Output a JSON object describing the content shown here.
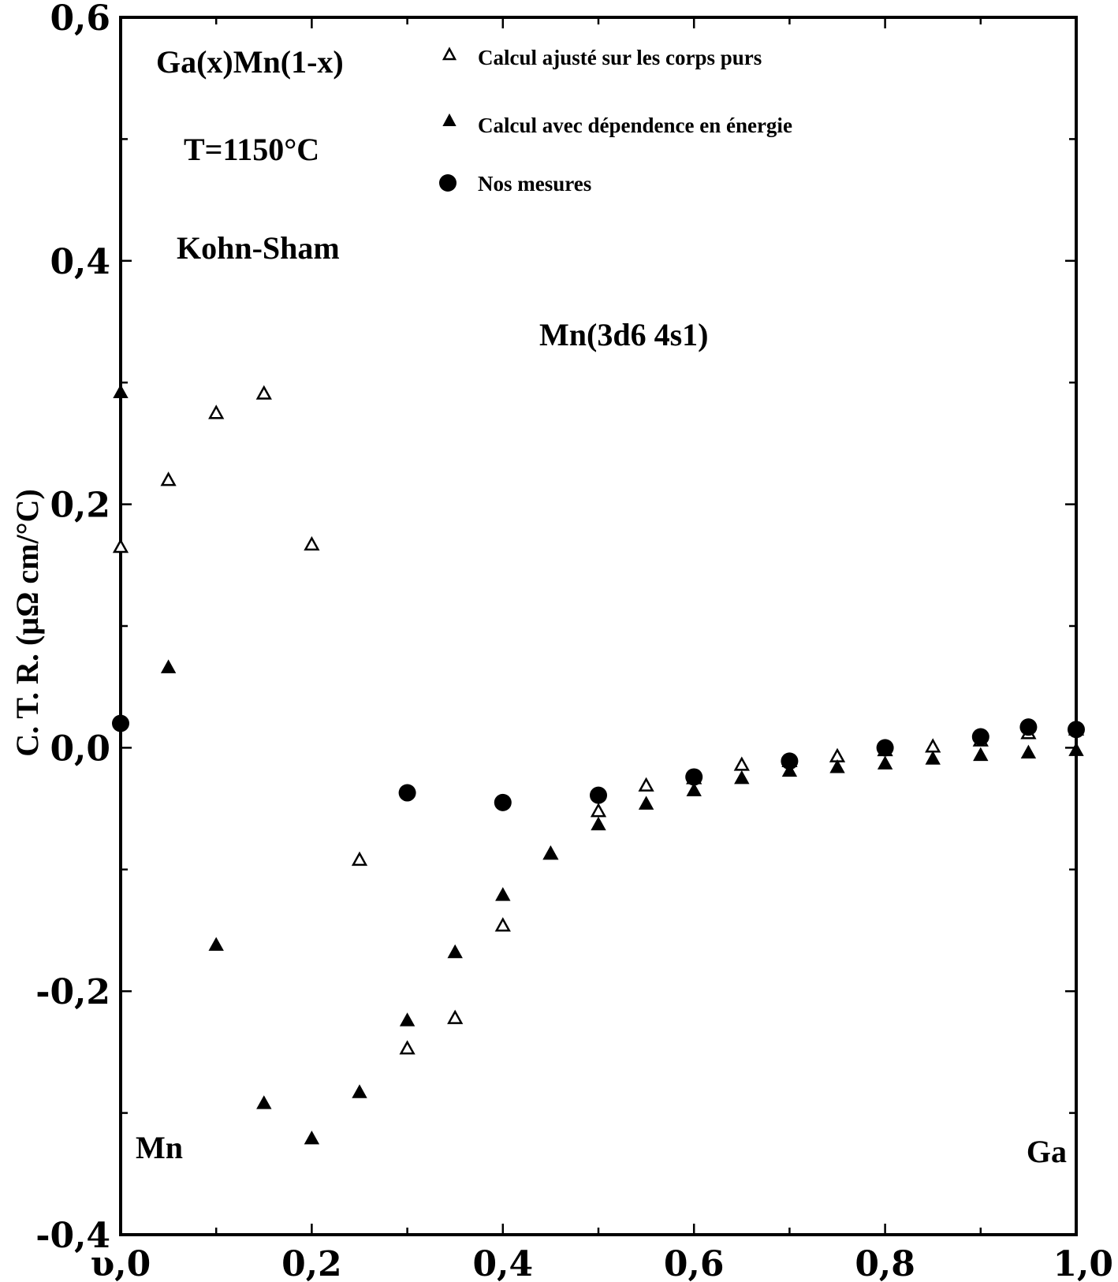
{
  "chart_data": {
    "type": "scatter",
    "title": "",
    "xlabel": "",
    "ylabel": "C. T. R. (µΩ cm/°C)",
    "xlim": [
      0.0,
      1.0
    ],
    "ylim": [
      -0.4,
      0.6
    ],
    "x_ticks": [
      {
        "value": 0.0,
        "label": "υ,0"
      },
      {
        "value": 0.2,
        "label": "0,2"
      },
      {
        "value": 0.4,
        "label": "0,4"
      },
      {
        "value": 0.6,
        "label": "0,6"
      },
      {
        "value": 0.8,
        "label": "0,8"
      },
      {
        "value": 1.0,
        "label": "1,0"
      }
    ],
    "y_ticks": [
      {
        "value": 0.6,
        "label": "0,6"
      },
      {
        "value": 0.4,
        "label": "0,4"
      },
      {
        "value": 0.2,
        "label": "0,2"
      },
      {
        "value": 0.0,
        "label": "0,0"
      },
      {
        "value": -0.2,
        "label": "-0,2"
      },
      {
        "value": -0.4,
        "label": "-0,4"
      }
    ],
    "grid": false,
    "legend_position": "top-right",
    "annotations": {
      "alloy": "Ga(x)Mn(1-x)",
      "temperature": "T=1150°C",
      "method": "Kohn-Sham",
      "configuration": "Mn(3d6  4s1)",
      "left_element": "Mn",
      "right_element": "Ga"
    },
    "series": [
      {
        "name": "Calcul ajusté sur les corps purs",
        "marker": "triangle-open",
        "x": [
          0.0,
          0.05,
          0.1,
          0.15,
          0.2,
          0.25,
          0.3,
          0.35,
          0.4,
          0.45,
          0.5,
          0.55,
          0.6,
          0.65,
          0.7,
          0.75,
          0.8,
          0.85,
          0.9,
          0.95,
          1.0
        ],
        "y": [
          0.165,
          0.22,
          0.275,
          0.291,
          0.167,
          -0.092,
          -0.247,
          -0.222,
          -0.146,
          -0.087,
          -0.052,
          -0.031,
          -0.025,
          -0.014,
          -0.011,
          -0.007,
          -0.002,
          0.001,
          0.006,
          0.012,
          0.015
        ]
      },
      {
        "name": "Calcul avec dépendence en énergie",
        "marker": "triangle-filled",
        "x": [
          0.0,
          0.05,
          0.1,
          0.15,
          0.2,
          0.25,
          0.3,
          0.35,
          0.4,
          0.45,
          0.5,
          0.55,
          0.6,
          0.65,
          0.7,
          0.75,
          0.8,
          0.85,
          0.9,
          0.95,
          1.0
        ],
        "y": [
          0.292,
          0.066,
          -0.162,
          -0.292,
          -0.321,
          -0.283,
          -0.224,
          -0.168,
          -0.121,
          -0.087,
          -0.063,
          -0.046,
          -0.035,
          -0.025,
          -0.019,
          -0.016,
          -0.013,
          -0.009,
          -0.006,
          -0.004,
          -0.002
        ]
      },
      {
        "name": "Nos mesures",
        "marker": "circle-filled",
        "x": [
          0.0,
          0.3,
          0.4,
          0.5,
          0.6,
          0.7,
          0.8,
          0.9,
          0.95,
          1.0
        ],
        "y": [
          0.02,
          -0.037,
          -0.045,
          -0.039,
          -0.024,
          -0.011,
          0.0,
          0.009,
          0.017,
          0.015
        ]
      }
    ]
  }
}
